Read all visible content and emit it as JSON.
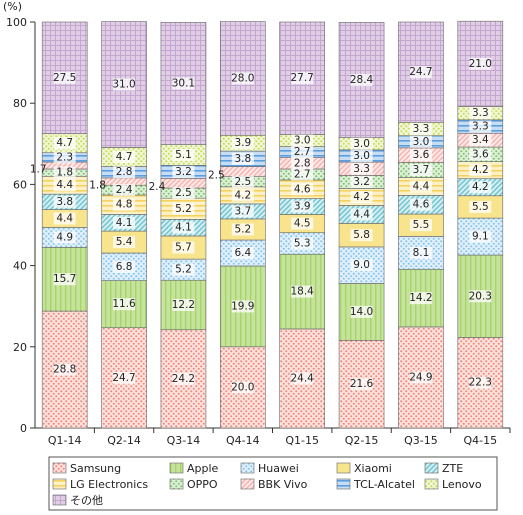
{
  "chart_data": {
    "type": "bar",
    "stacked": true,
    "y_unit": "(%)",
    "ylim": [
      0,
      100
    ],
    "y_ticks": [
      0,
      20,
      40,
      60,
      80,
      100
    ],
    "categories": [
      "Q1-14",
      "Q2-14",
      "Q3-14",
      "Q4-14",
      "Q1-15",
      "Q2-15",
      "Q3-15",
      "Q4-15"
    ],
    "series": [
      {
        "name": "Samsung",
        "color": "#f08a7a",
        "pattern": "dots",
        "values": [
          28.8,
          24.7,
          24.2,
          20.0,
          24.4,
          21.6,
          24.9,
          22.3
        ]
      },
      {
        "name": "Apple",
        "color": "#a7d46a",
        "pattern": "vlines",
        "values": [
          15.7,
          11.6,
          12.2,
          19.9,
          18.4,
          14.0,
          14.2,
          20.3
        ]
      },
      {
        "name": "Huawei",
        "color": "#86c5ef",
        "pattern": "dots",
        "values": [
          4.9,
          6.8,
          5.2,
          6.4,
          5.3,
          9.0,
          8.1,
          9.1
        ]
      },
      {
        "name": "Xiaomi",
        "color": "#f9e48e",
        "pattern": "solid",
        "values": [
          4.4,
          5.4,
          5.7,
          5.2,
          4.5,
          5.8,
          5.5,
          5.5
        ]
      },
      {
        "name": "ZTE",
        "color": "#6dc4cf",
        "pattern": "diag",
        "values": [
          3.8,
          4.1,
          4.1,
          3.7,
          3.9,
          4.4,
          4.6,
          4.2
        ]
      },
      {
        "name": "LG Electronics",
        "color": "#f5d25c",
        "pattern": "hlines",
        "values": [
          4.4,
          4.8,
          5.2,
          4.2,
          4.6,
          4.2,
          4.4,
          4.2
        ]
      },
      {
        "name": "OPPO",
        "color": "#7fc36c",
        "pattern": "dots",
        "values": [
          1.8,
          2.4,
          2.5,
          2.5,
          2.7,
          3.2,
          3.7,
          3.6
        ]
      },
      {
        "name": "BBK Vivo",
        "color": "#f6b3ad",
        "pattern": "diag",
        "values": [
          1.7,
          1.8,
          2.4,
          2.5,
          2.8,
          3.3,
          3.6,
          3.4
        ]
      },
      {
        "name": "TCL-Alcatel",
        "color": "#5b9ee0",
        "pattern": "hlines",
        "values": [
          2.3,
          2.8,
          3.2,
          3.8,
          2.7,
          3.0,
          3.0,
          3.3
        ]
      },
      {
        "name": "Lenovo",
        "color": "#c8dc58",
        "pattern": "dots",
        "values": [
          4.7,
          4.7,
          5.1,
          3.9,
          3.0,
          3.0,
          3.3,
          3.3
        ]
      },
      {
        "name": "その他",
        "color": "#c4a6cf",
        "pattern": "grid",
        "values": [
          27.5,
          31.0,
          30.1,
          28.0,
          27.7,
          28.4,
          24.7,
          21.0
        ]
      }
    ],
    "outside_labels": [
      {
        "category": "Q1-14",
        "series": "BBK Vivo",
        "text": "1.7"
      },
      {
        "category": "Q2-14",
        "series": "BBK Vivo",
        "text": "1.8"
      },
      {
        "category": "Q3-14",
        "series": "BBK Vivo",
        "text": "2.4"
      },
      {
        "category": "Q4-14",
        "series": "BBK Vivo",
        "text": "2.5"
      }
    ],
    "legend": {
      "position": "bottom",
      "order": [
        "Samsung",
        "Apple",
        "Huawei",
        "Xiaomi",
        "ZTE",
        "LG Electronics",
        "OPPO",
        "BBK Vivo",
        "TCL-Alcatel",
        "Lenovo",
        "その他"
      ]
    }
  }
}
